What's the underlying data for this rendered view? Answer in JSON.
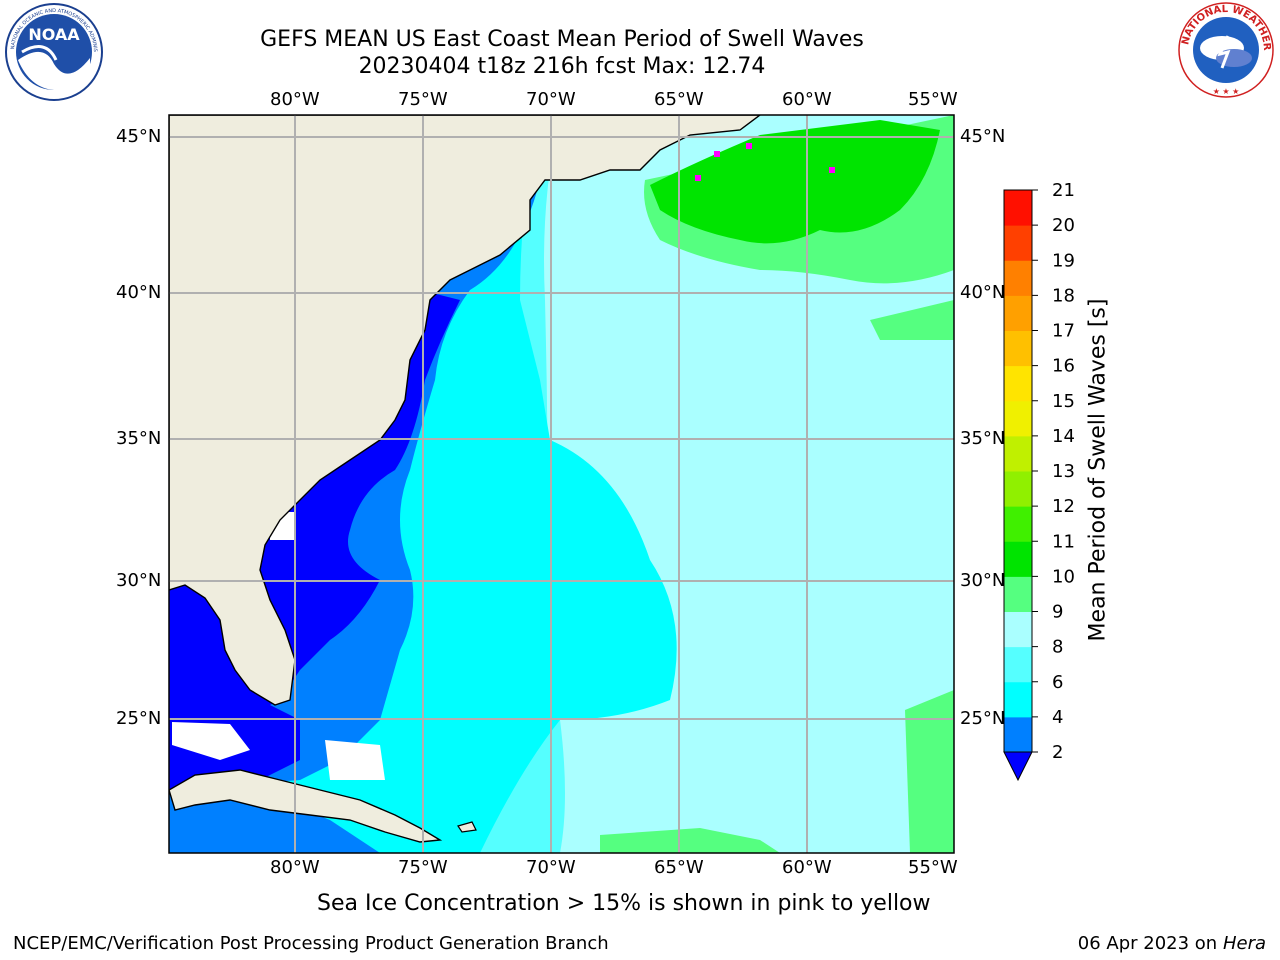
{
  "title": {
    "line1": "GEFS MEAN US East Coast Mean Period of Swell Waves",
    "line2": "20230404 t18z 216h fcst   Max: 12.74"
  },
  "logos": {
    "left": "noaa-logo",
    "right": "nws-logo",
    "right_text": "NATIONAL WEATHER SERVICE"
  },
  "map": {
    "lon_labels": [
      "80°W",
      "75°W",
      "70°W",
      "65°W",
      "60°W",
      "55°W"
    ],
    "lat_labels": [
      "45°N",
      "40°N",
      "35°N",
      "30°N",
      "25°N"
    ],
    "region": "US East Coast / Western North Atlantic"
  },
  "colorbar": {
    "title": "Mean Period of Swell Waves [s]",
    "ticks": [
      "2",
      "4",
      "6",
      "8",
      "9",
      "10",
      "11",
      "12",
      "13",
      "14",
      "15",
      "16",
      "17",
      "18",
      "19",
      "20",
      "21"
    ],
    "colors": [
      "#0000ff",
      "#0080ff",
      "#00ffff",
      "#55ffff",
      "#aaffff",
      "#55ff80",
      "#00e400",
      "#40f000",
      "#90f000",
      "#c0f000",
      "#f0f000",
      "#ffe400",
      "#ffc000",
      "#ffa000",
      "#ff8000",
      "#ff4000",
      "#ff1000"
    ],
    "extend_color": "#0000ff"
  },
  "footer": {
    "ice_note": "Sea Ice Concentration > 15% is shown in pink to yellow",
    "left": "NCEP/EMC/Verification Post Processing Product Generation Branch",
    "date": "06 Apr 2023 on",
    "host": "Hera"
  }
}
